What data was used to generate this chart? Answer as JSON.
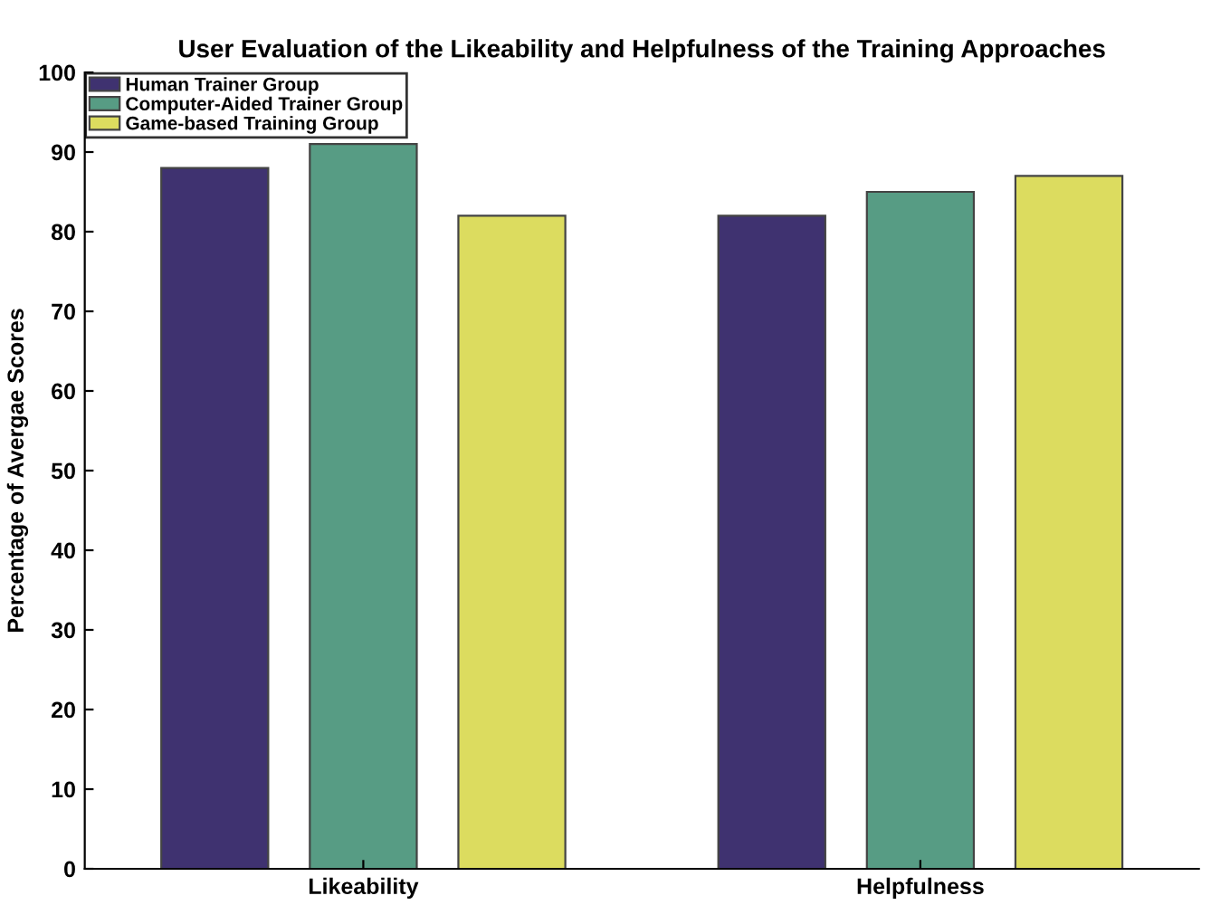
{
  "chart_data": {
    "type": "bar",
    "title": "User Evaluation of the Likeability and Helpfulness of the Training Approaches",
    "ylabel": "Percentage of Avergae Scores",
    "categories": [
      "Likeability",
      "Helpfulness"
    ],
    "series": [
      {
        "name": "Human Trainer Group",
        "color": "#3f3270",
        "values": [
          88,
          82
        ]
      },
      {
        "name": "Computer-Aided Trainer Group",
        "color": "#579c84",
        "values": [
          91,
          85
        ]
      },
      {
        "name": "Game-based Training Group",
        "color": "#dcdc5f",
        "values": [
          82,
          87
        ]
      }
    ],
    "ylim": [
      0,
      100
    ],
    "yticks": [
      0,
      10,
      20,
      30,
      40,
      50,
      60,
      70,
      80,
      90,
      100
    ],
    "grid": false,
    "legend": "top left"
  }
}
